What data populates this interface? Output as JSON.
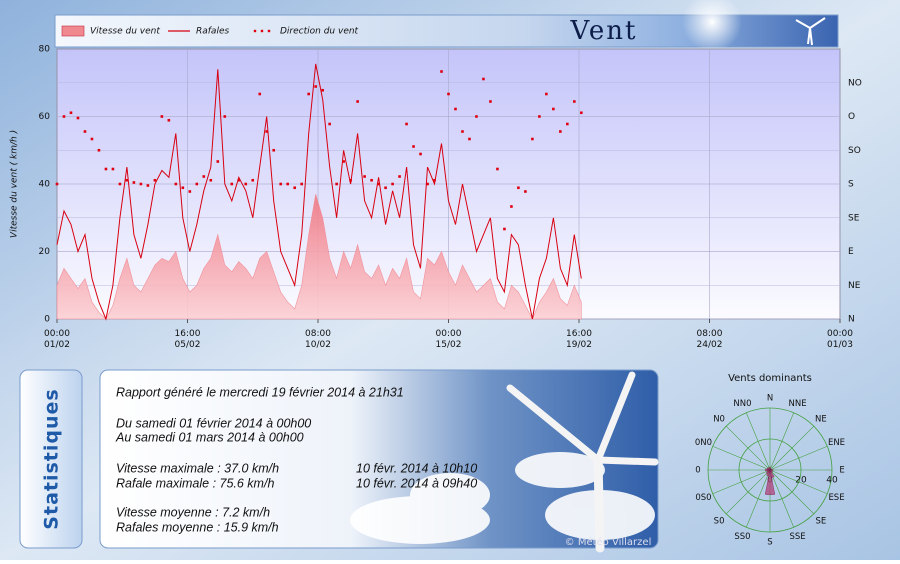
{
  "header": {
    "title": "Vent"
  },
  "chart_data": [
    {
      "type": "line",
      "y_label": "Vitesse du vent ( km/h )",
      "x": [
        "01/02 00:00",
        "01/02 06:00",
        "01/02 12:00",
        "01/02 18:00",
        "02/02 00:00",
        "02/02 06:00",
        "02/02 12:00",
        "02/02 18:00",
        "03/02 00:00",
        "03/02 06:00",
        "03/02 12:00",
        "03/02 18:00",
        "04/02 00:00",
        "04/02 06:00",
        "04/02 12:00",
        "04/02 18:00",
        "05/02 00:00",
        "05/02 06:00",
        "05/02 12:00",
        "05/02 18:00",
        "06/02 00:00",
        "06/02 06:00",
        "06/02 12:00",
        "06/02 18:00",
        "07/02 00:00",
        "07/02 06:00",
        "07/02 12:00",
        "07/02 18:00",
        "08/02 00:00",
        "08/02 06:00",
        "08/02 12:00",
        "08/02 18:00",
        "09/02 00:00",
        "09/02 06:00",
        "09/02 12:00",
        "09/02 18:00",
        "10/02 00:00",
        "10/02 06:00",
        "10/02 12:00",
        "10/02 18:00",
        "11/02 00:00",
        "11/02 06:00",
        "11/02 12:00",
        "11/02 18:00",
        "12/02 00:00",
        "12/02 06:00",
        "12/02 12:00",
        "12/02 18:00",
        "13/02 00:00",
        "13/02 06:00",
        "13/02 12:00",
        "13/02 18:00",
        "14/02 00:00",
        "14/02 06:00",
        "14/02 12:00",
        "14/02 18:00",
        "15/02 00:00",
        "15/02 06:00",
        "15/02 12:00",
        "15/02 18:00",
        "16/02 00:00",
        "16/02 06:00",
        "16/02 12:00",
        "16/02 18:00",
        "17/02 00:00",
        "17/02 06:00",
        "17/02 12:00",
        "17/02 18:00",
        "18/02 00:00",
        "18/02 06:00",
        "18/02 12:00",
        "18/02 18:00",
        "19/02 00:00",
        "19/02 06:00",
        "19/02 12:00",
        "19/02 18:00"
      ],
      "series": [
        {
          "name": "Vitesse du vent",
          "style": "area",
          "color": "#f08890",
          "values": [
            10,
            15,
            12,
            9,
            12,
            5,
            2,
            0,
            4,
            12,
            18,
            10,
            8,
            12,
            16,
            18,
            17,
            20,
            12,
            8,
            10,
            15,
            18,
            25,
            16,
            14,
            17,
            15,
            12,
            18,
            20,
            14,
            8,
            5,
            3,
            10,
            25,
            37,
            30,
            18,
            12,
            20,
            15,
            22,
            14,
            12,
            16,
            10,
            15,
            12,
            18,
            8,
            6,
            18,
            16,
            20,
            14,
            10,
            16,
            12,
            8,
            10,
            12,
            5,
            3,
            10,
            8,
            4,
            0,
            5,
            8,
            12,
            6,
            4,
            10,
            5
          ]
        },
        {
          "name": "Rafales",
          "style": "line",
          "color": "#d80010",
          "values": [
            22,
            32,
            28,
            20,
            25,
            12,
            5,
            0,
            10,
            30,
            45,
            25,
            18,
            28,
            40,
            44,
            42,
            55,
            30,
            20,
            28,
            38,
            45,
            74,
            40,
            35,
            42,
            38,
            30,
            45,
            60,
            35,
            20,
            15,
            10,
            25,
            55,
            75.6,
            65,
            45,
            30,
            50,
            40,
            55,
            35,
            30,
            42,
            28,
            38,
            30,
            45,
            22,
            15,
            45,
            40,
            52,
            35,
            28,
            40,
            30,
            20,
            25,
            30,
            12,
            8,
            25,
            22,
            10,
            0,
            12,
            18,
            30,
            15,
            10,
            25,
            12
          ]
        },
        {
          "name": "Direction du vent",
          "style": "dots",
          "axis": "y2",
          "color": "#e00010",
          "values": [
            180,
            270,
            275,
            268,
            250,
            240,
            225,
            200,
            200,
            180,
            185,
            182,
            180,
            178,
            185,
            270,
            265,
            180,
            175,
            170,
            180,
            190,
            185,
            210,
            270,
            180,
            185,
            180,
            185,
            300,
            250,
            225,
            180,
            180,
            175,
            180,
            300,
            310,
            305,
            260,
            180,
            210,
            185,
            290,
            190,
            185,
            180,
            175,
            180,
            190,
            260,
            230,
            220,
            180,
            185,
            330,
            300,
            280,
            250,
            240,
            270,
            320,
            290,
            200,
            120,
            150,
            175,
            170,
            240,
            270,
            300,
            280,
            250,
            260,
            290,
            275
          ]
        }
      ],
      "xlim": [
        "01/02 00:00",
        "01/03 00:00"
      ],
      "xticks": [
        {
          "value": "01/02 00:00",
          "label": "00:00 01/02"
        },
        {
          "value": "05/02 16:00",
          "label": "16:00 05/02"
        },
        {
          "value": "10/02 08:00",
          "label": "08:00 10/02"
        },
        {
          "value": "15/02 00:00",
          "label": "00:00 15/02"
        },
        {
          "value": "19/02 16:00",
          "label": "16:00 19/02"
        },
        {
          "value": "24/02 08:00",
          "label": "08:00 24/02"
        },
        {
          "value": "01/03 00:00",
          "label": "00:00 01/03"
        }
      ],
      "ylim": [
        0,
        80
      ],
      "yticks": [
        0,
        20,
        40,
        60,
        80
      ],
      "y2lim": [
        0,
        360
      ],
      "y2ticks": [
        {
          "value": 0,
          "label": "N"
        },
        {
          "value": 45,
          "label": "NE"
        },
        {
          "value": 90,
          "label": "E"
        },
        {
          "value": 135,
          "label": "SE"
        },
        {
          "value": 180,
          "label": "S"
        },
        {
          "value": 225,
          "label": "SO"
        },
        {
          "value": 270,
          "label": "O"
        },
        {
          "value": 315,
          "label": "NO"
        }
      ],
      "grid": true
    },
    {
      "type": "rose",
      "title": "Vents dominants",
      "color": "#b0407a",
      "grid_color": "#44a040",
      "categories": [
        "N",
        "NNE",
        "NE",
        "ENE",
        "E",
        "ESE",
        "SE",
        "SSE",
        "S",
        "SS0",
        "S0",
        "0S0",
        "0",
        "0N0",
        "N0",
        "NN0"
      ],
      "values": [
        2,
        1,
        1,
        1,
        2,
        1,
        2,
        5,
        16,
        4,
        3,
        2,
        3,
        2,
        2,
        1
      ],
      "rlim": [
        0,
        40
      ],
      "rticks": [
        0,
        20,
        40
      ]
    }
  ],
  "stats": {
    "tab": "Statistiques",
    "report": "Rapport généré le mercredi 19 février 2014 à 21h31",
    "period": [
      "Du samedi 01 février 2014 à 00h00",
      "Au samedi 01 mars 2014 à 00h00"
    ],
    "maxima": [
      [
        "Vitesse maximale : 37.0 km/h",
        "10 févr. 2014 à 10h10"
      ],
      [
        "Rafale maximale : 75.6 km/h",
        "10 févr. 2014 à 09h40"
      ]
    ],
    "averages": [
      "Vitesse moyenne : 7.2 km/h",
      "Rafales moyenne : 15.9 km/h"
    ],
    "credit": "© Météo Villarzel"
  }
}
